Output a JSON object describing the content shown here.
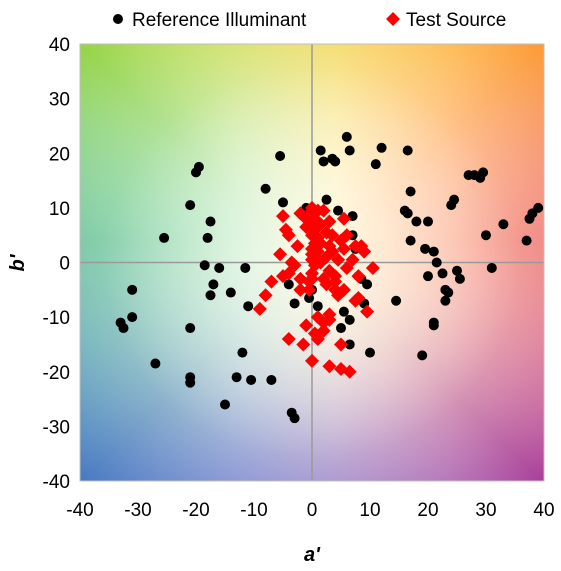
{
  "chart_data": {
    "type": "scatter",
    "title": "",
    "xlabel": "a'",
    "ylabel": "b'",
    "xlim": [
      -40,
      40
    ],
    "ylim": [
      -40,
      40
    ],
    "xticks": [
      -40,
      -30,
      -20,
      -10,
      0,
      10,
      20,
      30,
      40
    ],
    "yticks": [
      -40,
      -30,
      -20,
      -10,
      0,
      10,
      20,
      30,
      40
    ],
    "grid": false,
    "legend_position": "top",
    "background": "hue gradient (green top-left, yellow top, orange/red right, magenta bottom-right, blue bottom-left)",
    "series": [
      {
        "name": "Reference Illuminant",
        "marker": "circle",
        "color": "#000000",
        "points": [
          [
            -33,
            -11
          ],
          [
            -32.5,
            -12
          ],
          [
            -31,
            -10
          ],
          [
            -31,
            -5
          ],
          [
            -27,
            -18.5
          ],
          [
            -25.5,
            4.5
          ],
          [
            -21,
            10.5
          ],
          [
            -21,
            -12
          ],
          [
            -21,
            -21
          ],
          [
            -21,
            -22
          ],
          [
            -20,
            16.5
          ],
          [
            -19.5,
            17.5
          ],
          [
            -18.5,
            -0.5
          ],
          [
            -18,
            4.5
          ],
          [
            -17.5,
            7.5
          ],
          [
            -17.5,
            -6
          ],
          [
            -17,
            -4
          ],
          [
            -16,
            -1
          ],
          [
            -15,
            -26
          ],
          [
            -14,
            -5.5
          ],
          [
            -13,
            -21
          ],
          [
            -12,
            -16.5
          ],
          [
            -11.5,
            -1
          ],
          [
            -11,
            -8
          ],
          [
            -10.5,
            -21.5
          ],
          [
            -8,
            13.5
          ],
          [
            -7,
            -21.5
          ],
          [
            -5.5,
            19.5
          ],
          [
            -5,
            11
          ],
          [
            -4,
            -4
          ],
          [
            -3.5,
            -27.5
          ],
          [
            -3,
            -28.5
          ],
          [
            -3,
            -7.5
          ],
          [
            -1,
            10
          ],
          [
            -0.5,
            -6.5
          ],
          [
            0,
            -5
          ],
          [
            0.5,
            2
          ],
          [
            1,
            -8
          ],
          [
            1,
            -14
          ],
          [
            1.5,
            20.5
          ],
          [
            2,
            18.5
          ],
          [
            2.5,
            11.5
          ],
          [
            3.5,
            19
          ],
          [
            4,
            18.5
          ],
          [
            4.5,
            9.5
          ],
          [
            5,
            -12
          ],
          [
            5.5,
            -9
          ],
          [
            6,
            23
          ],
          [
            6.5,
            20.5
          ],
          [
            6.5,
            -10.5
          ],
          [
            6.5,
            -15
          ],
          [
            7,
            8.5
          ],
          [
            7,
            5
          ],
          [
            7.5,
            2.5
          ],
          [
            8,
            -2.5
          ],
          [
            8.5,
            -3
          ],
          [
            9,
            -7.5
          ],
          [
            9.5,
            -4
          ],
          [
            10,
            -16.5
          ],
          [
            11,
            18
          ],
          [
            12,
            21
          ],
          [
            14.5,
            -7
          ],
          [
            16,
            9.5
          ],
          [
            16.5,
            20.5
          ],
          [
            16.5,
            9
          ],
          [
            17,
            13
          ],
          [
            17,
            4
          ],
          [
            18,
            7.5
          ],
          [
            19,
            -17
          ],
          [
            19.5,
            2.5
          ],
          [
            20,
            7.5
          ],
          [
            20,
            -2.5
          ],
          [
            21,
            2
          ],
          [
            21,
            -11
          ],
          [
            21,
            -11.5
          ],
          [
            21.5,
            0
          ],
          [
            22.5,
            -2
          ],
          [
            23,
            -5
          ],
          [
            23.5,
            -5.5
          ],
          [
            23,
            -7
          ],
          [
            24,
            10.5
          ],
          [
            24.5,
            11.5
          ],
          [
            25,
            -1.5
          ],
          [
            25.5,
            -3
          ],
          [
            27,
            16
          ],
          [
            28,
            16
          ],
          [
            29,
            15.5
          ],
          [
            29.5,
            16.5
          ],
          [
            30,
            5
          ],
          [
            31,
            -1
          ],
          [
            33,
            7
          ],
          [
            37,
            4
          ],
          [
            37.5,
            8
          ],
          [
            38,
            9
          ],
          [
            39,
            10
          ]
        ]
      },
      {
        "name": "Test Source",
        "marker": "diamond",
        "color": "#ff0000",
        "points": [
          [
            -9,
            -8.5
          ],
          [
            -8,
            -6
          ],
          [
            -7,
            -3.5
          ],
          [
            -5.5,
            1.5
          ],
          [
            -5,
            -2.5
          ],
          [
            -5,
            8.5
          ],
          [
            -4.5,
            6
          ],
          [
            -4,
            5
          ],
          [
            -4,
            -2
          ],
          [
            -4,
            -14
          ],
          [
            -3.5,
            0
          ],
          [
            -3,
            -0.5
          ],
          [
            -2.5,
            3
          ],
          [
            -2,
            9
          ],
          [
            -2,
            -3
          ],
          [
            -2,
            -5
          ],
          [
            -1.5,
            -15
          ],
          [
            -1,
            -11.5
          ],
          [
            -1,
            8
          ],
          [
            -1,
            6.5
          ],
          [
            -0.5,
            -3.5
          ],
          [
            -0.5,
            -5
          ],
          [
            0,
            10
          ],
          [
            0,
            9.5
          ],
          [
            0,
            7.5
          ],
          [
            0,
            5
          ],
          [
            0,
            2.5
          ],
          [
            0,
            1.5
          ],
          [
            0,
            0.5
          ],
          [
            0,
            -2
          ],
          [
            0,
            -3
          ],
          [
            0,
            -18
          ],
          [
            0.5,
            8
          ],
          [
            0.5,
            6
          ],
          [
            0.5,
            3.5
          ],
          [
            0.5,
            -0.5
          ],
          [
            0.5,
            -13
          ],
          [
            1,
            9.5
          ],
          [
            1,
            4.5
          ],
          [
            1,
            2
          ],
          [
            1,
            -10
          ],
          [
            1,
            -14
          ],
          [
            1.5,
            7
          ],
          [
            1.5,
            3.5
          ],
          [
            1.5,
            0
          ],
          [
            2,
            9.5
          ],
          [
            2,
            -3
          ],
          [
            2,
            -11
          ],
          [
            2,
            -12.5
          ],
          [
            2.5,
            5.5
          ],
          [
            2.5,
            1
          ],
          [
            2.5,
            -4
          ],
          [
            3,
            7.5
          ],
          [
            3,
            3
          ],
          [
            3,
            -1.5
          ],
          [
            3,
            -9.5
          ],
          [
            3,
            -10.5
          ],
          [
            3,
            -19
          ],
          [
            3.5,
            5
          ],
          [
            3.5,
            2
          ],
          [
            4,
            -2.5
          ],
          [
            4,
            -3.5
          ],
          [
            4,
            -5
          ],
          [
            4.5,
            0.5
          ],
          [
            4.5,
            -6
          ],
          [
            5,
            4
          ],
          [
            5,
            -15
          ],
          [
            5,
            -19.5
          ],
          [
            5.5,
            8
          ],
          [
            5.5,
            2.5
          ],
          [
            5.5,
            -5
          ],
          [
            6,
            5
          ],
          [
            6,
            -1
          ],
          [
            6.5,
            -20
          ],
          [
            7,
            0.5
          ],
          [
            7.5,
            3
          ],
          [
            7.5,
            -7
          ],
          [
            8,
            -2.5
          ],
          [
            8,
            -6.5
          ],
          [
            8.5,
            3
          ],
          [
            9,
            2
          ],
          [
            9.5,
            -9
          ],
          [
            10.5,
            -1
          ]
        ]
      }
    ]
  }
}
